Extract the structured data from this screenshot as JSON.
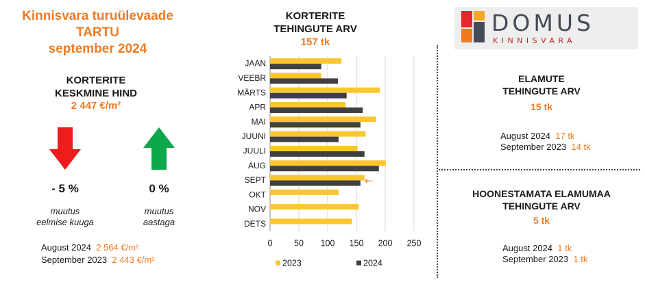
{
  "left": {
    "title_line1": "Kinnisvara turuülevaade",
    "title_line2": "TARTU",
    "title_line3": "september 2024",
    "price_heading_line1": "KORTERITE",
    "price_heading_line2": "KESKMINE HIND",
    "price_value": "2 447 €/m²",
    "month_change": {
      "value": "- 5 %",
      "direction": "down",
      "arrow_color": "#ef1c1c",
      "label_line1": "muutus",
      "label_line2": "eelmise kuuga"
    },
    "year_change": {
      "value": "0 %",
      "direction": "up",
      "arrow_color": "#0da84a",
      "label_line1": "muutus",
      "label_line2": "aastaga"
    },
    "compare": [
      {
        "label": "August 2024",
        "value": "2 564 €/m²"
      },
      {
        "label": "September 2023",
        "value": "2 443 €/m²"
      }
    ]
  },
  "chart_heading_line1": "KORTERITE",
  "chart_heading_line2": "TEHINGUTE ARV",
  "chart_total": "157 tk",
  "chart_data": {
    "type": "bar",
    "orientation": "horizontal",
    "categories": [
      "JAAN",
      "VEEBR",
      "MÄRTS",
      "APR",
      "MAI",
      "JUUNI",
      "JUULI",
      "AUG",
      "SEPT",
      "OKT",
      "NOV",
      "DETS"
    ],
    "series": [
      {
        "name": "2023",
        "color": "#fdc62e",
        "values": [
          124,
          89,
          191,
          131,
          184,
          166,
          152,
          201,
          164,
          119,
          154,
          142
        ]
      },
      {
        "name": "2024",
        "color": "#404040",
        "values": [
          89,
          118,
          133,
          161,
          157,
          119,
          164,
          189,
          157,
          null,
          null,
          null
        ]
      }
    ],
    "xlim": [
      0,
      250
    ],
    "xticks": [
      "0",
      "50",
      "100",
      "150",
      "200",
      "250"
    ],
    "grid": true,
    "legend": "bottom",
    "annotation": {
      "category": "SEPT",
      "symbol": "←",
      "color": "#ef7a22"
    }
  },
  "right": {
    "logo_text": "DOMUS",
    "logo_sub": "KINNISVARA",
    "logo_colors": [
      "#e5292a",
      "#f5a623",
      "#444b57",
      "#ef7a22"
    ],
    "houses_heading_line1": "ELAMUTE",
    "houses_heading_line2": "TEHINGUTE ARV",
    "houses_value": "15 tk",
    "houses_compare": [
      {
        "label": "August 2024",
        "value": "17 tk"
      },
      {
        "label": "September 2023",
        "value": "14 tk"
      }
    ],
    "land_heading_line1": "HOONESTAMATA ELAMUMAA",
    "land_heading_line2": "TEHINGUTE ARV",
    "land_value": "5 tk",
    "land_compare": [
      {
        "label": "August 2024",
        "value": "1 tk"
      },
      {
        "label": "September 2023",
        "value": "1 tk"
      }
    ]
  }
}
